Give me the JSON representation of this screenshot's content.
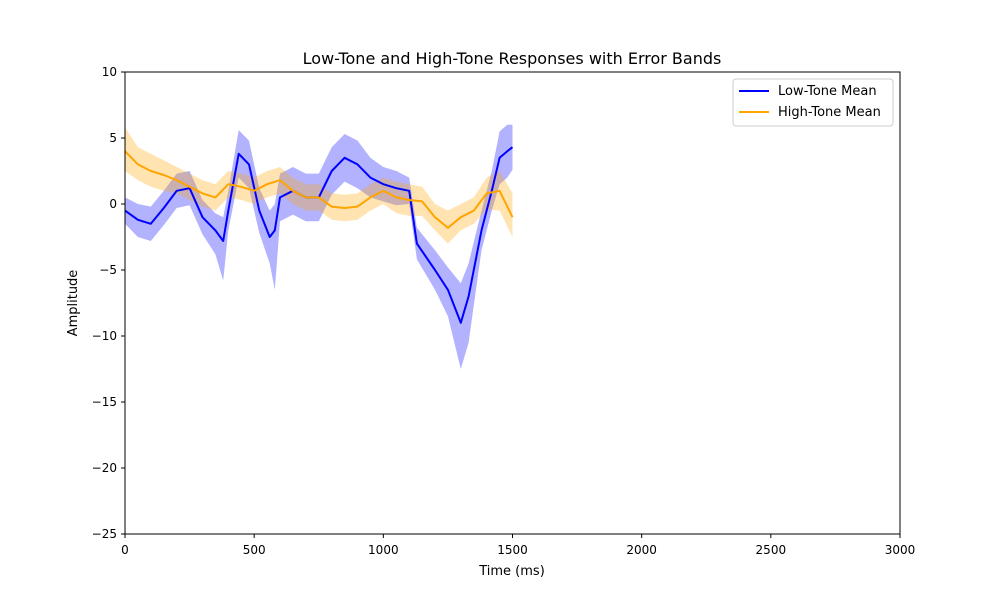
{
  "chart_data": {
    "type": "line",
    "title": "Low-Tone and High-Tone Responses with Error Bands",
    "xlabel": "Time (ms)",
    "ylabel": "Amplitude",
    "xlim": [
      0,
      3000
    ],
    "ylim": [
      -25,
      10
    ],
    "xticks": [
      0,
      500,
      1000,
      1500,
      2000,
      2500,
      3000
    ],
    "xtick_labels": [
      "0",
      "500",
      "1000",
      "1500",
      "2000",
      "2500",
      "3000"
    ],
    "yticks": [
      10,
      5,
      0,
      -5,
      -10,
      -15,
      -20,
      -25
    ],
    "ytick_labels": [
      "10",
      "5",
      "0",
      "−5",
      "−10",
      "−15",
      "−20",
      "−25"
    ],
    "grid": false,
    "legend_position": "top-right",
    "series": [
      {
        "name": "Low-Tone Mean",
        "color": "#0000ff",
        "band_color": "#0000ff",
        "x": [
          0,
          50,
          100,
          150,
          200,
          250,
          300,
          350,
          380,
          400,
          440,
          480,
          520,
          560,
          580,
          600,
          650,
          700,
          750,
          800,
          850,
          900,
          950,
          1000,
          1050,
          1100,
          1130,
          1200,
          1250,
          1300,
          1330,
          1380,
          1420,
          1450,
          1480,
          1500
        ],
        "y": [
          -0.5,
          -1.2,
          -1.5,
          -0.3,
          1.0,
          1.2,
          -1.0,
          -2.0,
          -2.8,
          -0.5,
          3.8,
          3.0,
          -0.5,
          -2.5,
          -2.0,
          0.5,
          1.0,
          0.5,
          0.5,
          2.5,
          3.5,
          3.0,
          2.0,
          1.5,
          1.2,
          1.0,
          -3.0,
          -5.0,
          -6.5,
          -9.0,
          -7.0,
          -2.0,
          1.0,
          3.5,
          4.0,
          4.3
        ],
        "upper": [
          0.5,
          0.0,
          -0.2,
          1.0,
          2.3,
          2.5,
          0.3,
          -0.7,
          -1.0,
          1.0,
          5.6,
          4.8,
          1.2,
          -0.5,
          0.0,
          2.3,
          2.8,
          2.3,
          2.3,
          4.3,
          5.3,
          4.8,
          3.5,
          2.8,
          2.5,
          2.0,
          -1.8,
          -3.5,
          -4.8,
          -6.0,
          -4.5,
          -0.5,
          2.5,
          5.5,
          6.0,
          6.0
        ],
        "lower": [
          -1.5,
          -2.5,
          -2.8,
          -1.6,
          -0.3,
          -0.1,
          -2.3,
          -3.8,
          -5.8,
          -2.0,
          2.0,
          1.2,
          -2.2,
          -4.5,
          -6.5,
          -1.3,
          -0.8,
          -1.3,
          -1.3,
          0.7,
          1.7,
          1.2,
          0.5,
          0.2,
          -0.1,
          0.0,
          -4.2,
          -6.5,
          -8.5,
          -12.5,
          -10.5,
          -3.5,
          -0.5,
          1.5,
          2.0,
          2.6
        ]
      },
      {
        "name": "High-Tone Mean",
        "color": "#ffa500",
        "band_color": "#ffa500",
        "x": [
          0,
          50,
          100,
          150,
          200,
          250,
          300,
          350,
          400,
          450,
          500,
          550,
          600,
          650,
          700,
          750,
          800,
          850,
          900,
          950,
          1000,
          1050,
          1100,
          1150,
          1200,
          1250,
          1300,
          1350,
          1400,
          1450,
          1500
        ],
        "y": [
          4.0,
          3.0,
          2.5,
          2.2,
          1.8,
          1.3,
          0.8,
          0.5,
          1.5,
          1.3,
          1.0,
          1.5,
          1.8,
          1.0,
          0.5,
          0.5,
          -0.2,
          -0.3,
          -0.2,
          0.5,
          1.0,
          0.5,
          0.3,
          0.2,
          -1.0,
          -1.8,
          -1.0,
          -0.5,
          0.8,
          1.0,
          -1.0
        ],
        "upper": [
          5.8,
          4.3,
          3.8,
          3.3,
          2.8,
          2.3,
          1.8,
          1.5,
          2.5,
          2.3,
          2.0,
          2.5,
          2.8,
          2.0,
          1.5,
          1.5,
          0.8,
          0.7,
          0.8,
          1.5,
          2.0,
          1.7,
          1.5,
          1.3,
          0.0,
          -0.5,
          0.0,
          0.5,
          2.0,
          2.5,
          0.8
        ],
        "lower": [
          2.5,
          1.8,
          1.3,
          1.0,
          0.8,
          0.3,
          -0.2,
          -0.5,
          0.5,
          0.3,
          0.0,
          0.5,
          0.8,
          0.0,
          -0.5,
          -0.5,
          -1.2,
          -1.3,
          -1.2,
          -0.5,
          0.0,
          -0.7,
          -0.9,
          -0.9,
          -2.0,
          -3.0,
          -2.0,
          -1.5,
          -0.4,
          -0.5,
          -2.5
        ]
      }
    ]
  }
}
